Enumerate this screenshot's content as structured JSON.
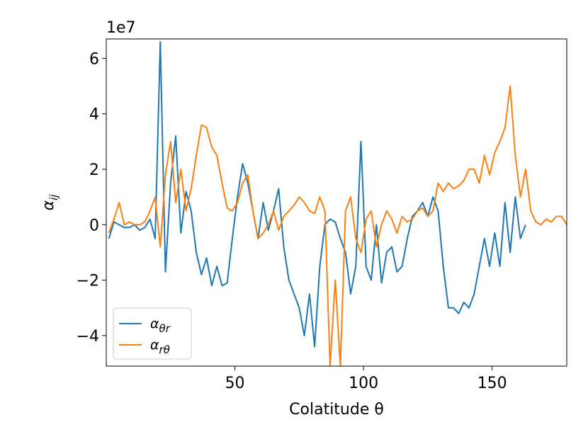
{
  "chart_data": {
    "type": "line",
    "xlabel": "Colatitude θ",
    "ylabel": "αij",
    "offset_label": "1e7",
    "x": [
      1,
      3,
      5,
      7,
      9,
      11,
      13,
      15,
      17,
      19,
      21,
      23,
      25,
      27,
      29,
      31,
      33,
      35,
      37,
      39,
      41,
      43,
      45,
      47,
      49,
      51,
      53,
      55,
      57,
      59,
      61,
      63,
      65,
      67,
      69,
      71,
      73,
      75,
      77,
      79,
      81,
      83,
      85,
      87,
      89,
      91,
      93,
      95,
      97,
      99,
      101,
      103,
      105,
      107,
      109,
      111,
      113,
      115,
      117,
      119,
      121,
      123,
      125,
      127,
      129,
      131,
      133,
      135,
      137,
      139,
      141,
      143,
      145,
      147,
      149,
      151,
      153,
      155,
      157,
      159,
      161,
      163,
      165,
      167,
      169,
      171,
      173,
      175,
      177,
      179
    ],
    "series": [
      {
        "name": "αθr",
        "color": "#1f77b4",
        "values": [
          -0.5,
          0.1,
          0,
          -0.1,
          -0.1,
          0,
          -0.2,
          -0.1,
          0.2,
          -0.5,
          6.6,
          -1.7,
          1.5,
          3.2,
          -0.3,
          1.2,
          0.5,
          -1.0,
          -1.8,
          -1.2,
          -2.2,
          -1.5,
          -2.2,
          -2.1,
          -0.5,
          1.0,
          2.2,
          1.5,
          0.5,
          -0.5,
          0.8,
          -0.2,
          0.5,
          1.3,
          -0.8,
          -2.0,
          -2.5,
          -3.0,
          -4.0,
          -2.5,
          -4.4,
          -1.5,
          0,
          0.2,
          0.1,
          -0.5,
          -1.0,
          -2.5,
          -1.5,
          3.0,
          -1.5,
          -2.0,
          0,
          -2.1,
          -1.0,
          -0.8,
          -1.7,
          -1.5,
          -0.5,
          0.3,
          0.5,
          0.8,
          0.3,
          1.0,
          0.5,
          -1.5,
          -3.0,
          -3.0,
          -3.2,
          -2.8,
          -3.0,
          -2.5,
          -1.5,
          -0.5,
          -1.5,
          -0.3,
          -1.5,
          0.8,
          -1.0,
          1.0,
          -0.5,
          0,
          null,
          null,
          null,
          null,
          null,
          null,
          null,
          null
        ]
      },
      {
        "name": "αrθ",
        "color": "#ff7f0e",
        "values": [
          -0.3,
          0.2,
          0.8,
          0,
          0.1,
          0,
          0,
          0.1,
          0.5,
          1.0,
          -0.8,
          1.8,
          3.0,
          0.8,
          2.0,
          0.5,
          1.3,
          2.5,
          3.6,
          3.5,
          2.8,
          2.5,
          1.5,
          0.6,
          0.5,
          0.8,
          1.5,
          1.8,
          0.5,
          -0.5,
          -0.3,
          0,
          0.5,
          -0.2,
          0.3,
          0.5,
          0.7,
          1.0,
          0.8,
          0.5,
          0.4,
          1.0,
          0.5,
          -5.1,
          -2.0,
          -5.1,
          0.5,
          1.0,
          -0.5,
          -1.0,
          0.2,
          0.5,
          -0.8,
          0,
          0.5,
          0.2,
          -0.3,
          0.3,
          0.1,
          0.2,
          0.5,
          0.6,
          0.3,
          0.5,
          1.5,
          1.2,
          1.5,
          1.3,
          1.4,
          1.6,
          2.0,
          2.0,
          1.5,
          2.5,
          1.8,
          2.6,
          3.0,
          3.5,
          5.0,
          2.5,
          1.0,
          2.0,
          0.5,
          0.1,
          0,
          0.2,
          0.1,
          0.3,
          0.3,
          0
        ]
      }
    ],
    "xlim": [
      0,
      179
    ],
    "ylim": [
      -5.1,
      6.7
    ],
    "xticks": [
      50,
      100,
      150
    ],
    "yticks": [
      {
        "value": -4,
        "label": "−4"
      },
      {
        "value": -2,
        "label": "−2"
      },
      0,
      2,
      4,
      6
    ],
    "legend": "lower left"
  }
}
